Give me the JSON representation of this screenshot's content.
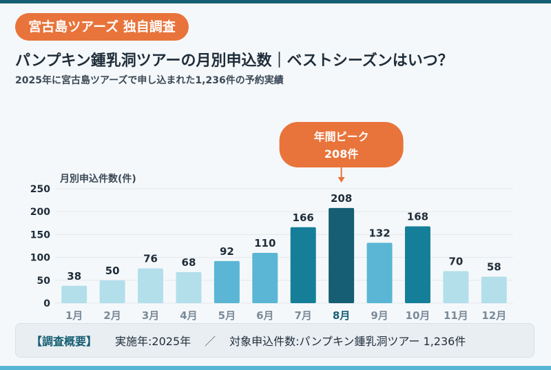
{
  "header": {
    "badge": "宮古島ツアーズ 独自調査",
    "title": "パンプキン鍾乳洞ツアーの月別申込数｜ベストシーズンはいつ？",
    "subtitle": "2025年に宮古島ツアーズで申し込まれた1,236件の予約実績"
  },
  "chart_data": {
    "type": "bar",
    "ylabel": "月別申込件数(件)",
    "ylim": [
      0,
      250
    ],
    "yticks": [
      0,
      50,
      100,
      150,
      200,
      250
    ],
    "categories": [
      "1月",
      "2月",
      "3月",
      "4月",
      "5月",
      "6月",
      "7月",
      "8月",
      "9月",
      "10月",
      "11月",
      "12月"
    ],
    "values": [
      38,
      50,
      76,
      68,
      92,
      110,
      166,
      208,
      132,
      168,
      70,
      58
    ],
    "grid": true,
    "annotation": {
      "label_line1": "年間ピーク",
      "label_line2": "208件",
      "category": "8月"
    },
    "colors": {
      "low": "#b3dfeb",
      "mid": "#5ab6d4",
      "high": "#157e99",
      "peak": "#155e73",
      "label_default": "#7a8a99",
      "label_peak": "#155e73",
      "grid": "#e3e8ec",
      "callout": "#e8743b"
    }
  },
  "summary": {
    "heading": "【調査概要】",
    "year": "実施年:2025年",
    "separator": "／",
    "target": "対象申込件数:パンプキン鍾乳洞ツアー 1,236件"
  }
}
